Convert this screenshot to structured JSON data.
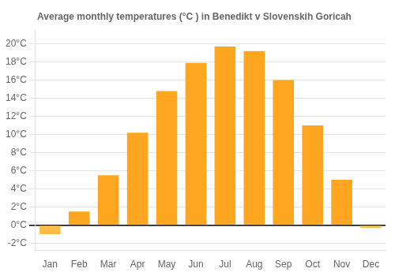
{
  "chart_data": {
    "type": "bar",
    "title": "Average monthly temperatures (°C ) in Benedikt v Slovenskih Goricah",
    "categories": [
      "Jan",
      "Feb",
      "Mar",
      "Apr",
      "May",
      "Jun",
      "Jul",
      "Aug",
      "Sep",
      "Oct",
      "Nov",
      "Dec"
    ],
    "values": [
      -1.0,
      1.5,
      5.5,
      10.2,
      14.8,
      17.9,
      19.7,
      19.2,
      16.0,
      11.0,
      5.0,
      -0.3
    ],
    "colors": [
      "#FFBB44",
      "#FFA620",
      "#FFA620",
      "#FFA620",
      "#FFA620",
      "#FFA620",
      "#FFA620",
      "#FFA620",
      "#FFA620",
      "#FFA620",
      "#FFA620",
      "#FFBB44"
    ],
    "ylim": [
      -2.8,
      21.5
    ],
    "yticks": [
      {
        "value": -2,
        "label": "-2°C"
      },
      {
        "value": 0,
        "label": "0°C"
      },
      {
        "value": 2,
        "label": "2°C"
      },
      {
        "value": 4,
        "label": "4°C"
      },
      {
        "value": 6,
        "label": "6°C"
      },
      {
        "value": 8,
        "label": "8°C"
      },
      {
        "value": 10,
        "label": "10°C"
      },
      {
        "value": 12,
        "label": "12°C"
      },
      {
        "value": 14,
        "label": "14°C"
      },
      {
        "value": 16,
        "label": "16°C"
      },
      {
        "value": 18,
        "label": "18°C"
      },
      {
        "value": 20,
        "label": "20°C"
      }
    ],
    "grid": true
  }
}
